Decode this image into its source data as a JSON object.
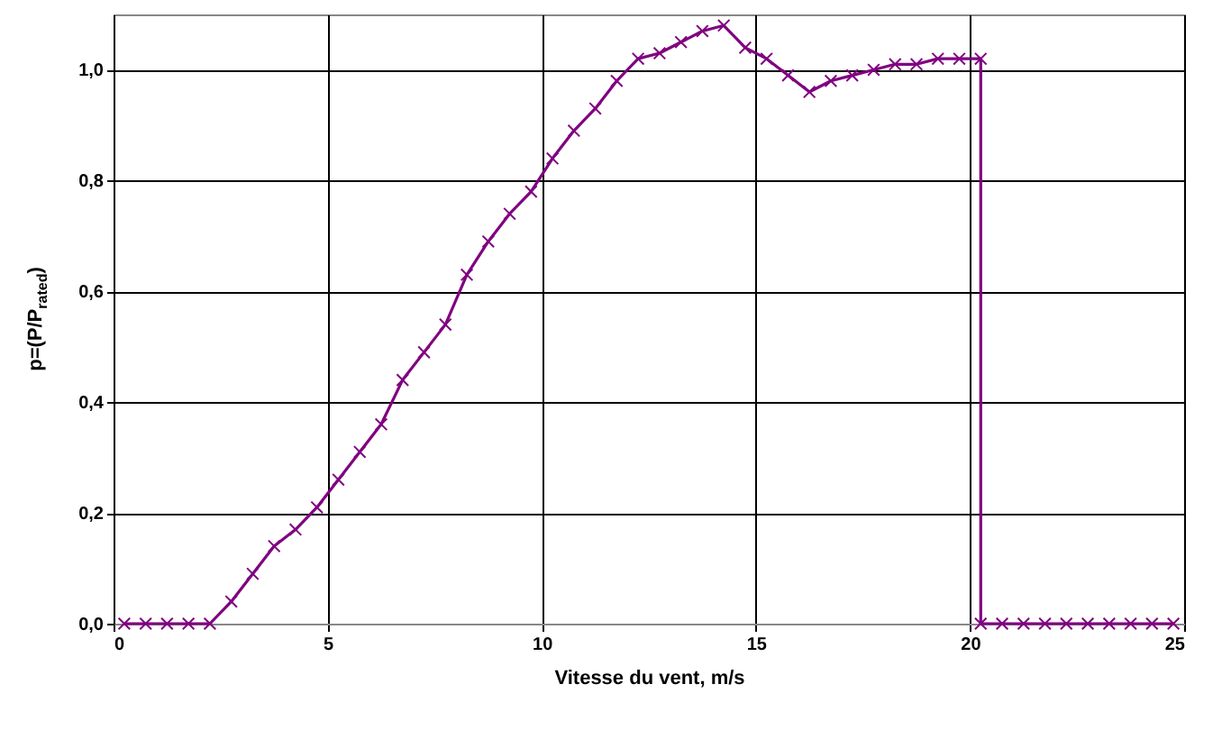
{
  "chart_data": {
    "type": "line",
    "xlabel": "Vitesse du vent, m/s",
    "ylabel": "p=(P/P$_{rated}$)",
    "x": [
      0.25,
      0.75,
      1.25,
      1.75,
      2.25,
      2.75,
      3.25,
      3.75,
      4.25,
      4.75,
      5.25,
      5.75,
      6.25,
      6.75,
      7.25,
      7.75,
      8.25,
      8.75,
      9.25,
      9.75,
      10.25,
      10.75,
      11.25,
      11.75,
      12.25,
      12.75,
      13.25,
      13.75,
      14.25,
      14.75,
      15.25,
      15.75,
      16.25,
      16.75,
      17.25,
      17.75,
      18.25,
      18.75,
      19.25,
      19.75,
      20.25,
      20.25,
      20.75,
      21.25,
      21.75,
      22.25,
      22.75,
      23.25,
      23.75,
      24.25,
      24.75
    ],
    "series": [
      {
        "color": "#800080",
        "values": [
          0,
          0,
          0,
          0,
          0,
          0.04,
          0.09,
          0.14,
          0.17,
          0.21,
          0.26,
          0.31,
          0.36,
          0.44,
          0.49,
          0.54,
          0.63,
          0.69,
          0.74,
          0.78,
          0.84,
          0.89,
          0.93,
          0.98,
          1.02,
          1.03,
          1.05,
          1.07,
          1.08,
          1.04,
          1.02,
          0.99,
          0.96,
          0.98,
          0.99,
          1.0,
          1.01,
          1.01,
          1.02,
          1.02,
          1.02,
          0,
          0,
          0,
          0,
          0,
          0,
          0,
          0,
          0,
          0
        ]
      }
    ],
    "xlim": [
      0,
      25
    ],
    "xticks": [
      0,
      5,
      10,
      15,
      20,
      25
    ],
    "ylim": [
      0,
      1.1
    ],
    "yticks": [
      {
        "value": 0,
        "label": "0,0"
      },
      {
        "value": 0.2,
        "label": "0,2"
      },
      {
        "value": 0.4,
        "label": "0,4"
      },
      {
        "value": 0.6,
        "label": "0,6"
      },
      {
        "value": 0.8,
        "label": "0,8"
      },
      {
        "value": 1.0,
        "label": "1,0"
      }
    ],
    "grid": true,
    "marker": "cross",
    "line_style": "solid"
  }
}
